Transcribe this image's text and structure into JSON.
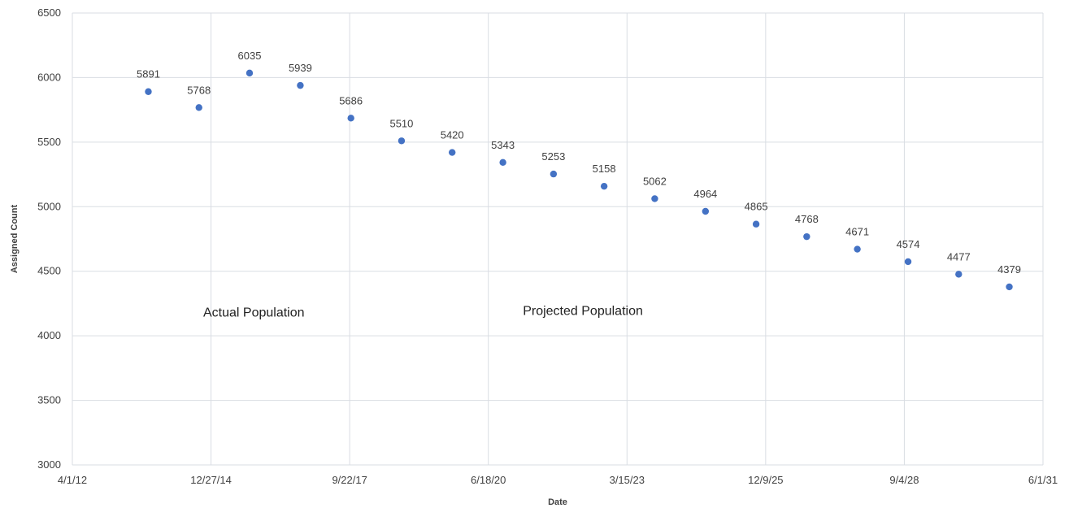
{
  "chart_data": {
    "type": "scatter",
    "title": "",
    "xlabel": "Date",
    "ylabel": "Assigned Count",
    "x_ticks": [
      "4/1/12",
      "12/27/14",
      "9/22/17",
      "6/18/20",
      "3/15/23",
      "12/9/25",
      "9/4/28",
      "6/1/31"
    ],
    "xlim": [
      "2012-04-01",
      "2031-06-01"
    ],
    "ylim": [
      3000,
      6500
    ],
    "y_ticks": [
      3000,
      3500,
      4000,
      4500,
      5000,
      5500,
      6000,
      6500
    ],
    "grid": true,
    "legend": "none",
    "marker_color": "#4472c4",
    "series": [
      {
        "x": [
          "2013-10-01",
          "2014-10-01",
          "2015-10-01",
          "2016-10-01",
          "2017-10-01",
          "2018-10-01",
          "2019-10-01",
          "2020-10-01",
          "2021-10-01",
          "2022-10-01",
          "2023-10-01",
          "2024-10-01",
          "2025-10-01",
          "2026-10-01",
          "2027-10-01",
          "2028-10-01",
          "2029-10-01",
          "2030-10-01"
        ],
        "y": [
          5891,
          5768,
          6035,
          5939,
          5686,
          5510,
          5420,
          5343,
          5253,
          5158,
          5062,
          4964,
          4865,
          4768,
          4671,
          4574,
          4477,
          4379
        ]
      }
    ],
    "annotations": [
      {
        "text": "Actual Population",
        "x": "2015-11-01",
        "y": 4150
      },
      {
        "text": "Projected Population",
        "x": "2022-05-01",
        "y": 4160
      }
    ]
  }
}
